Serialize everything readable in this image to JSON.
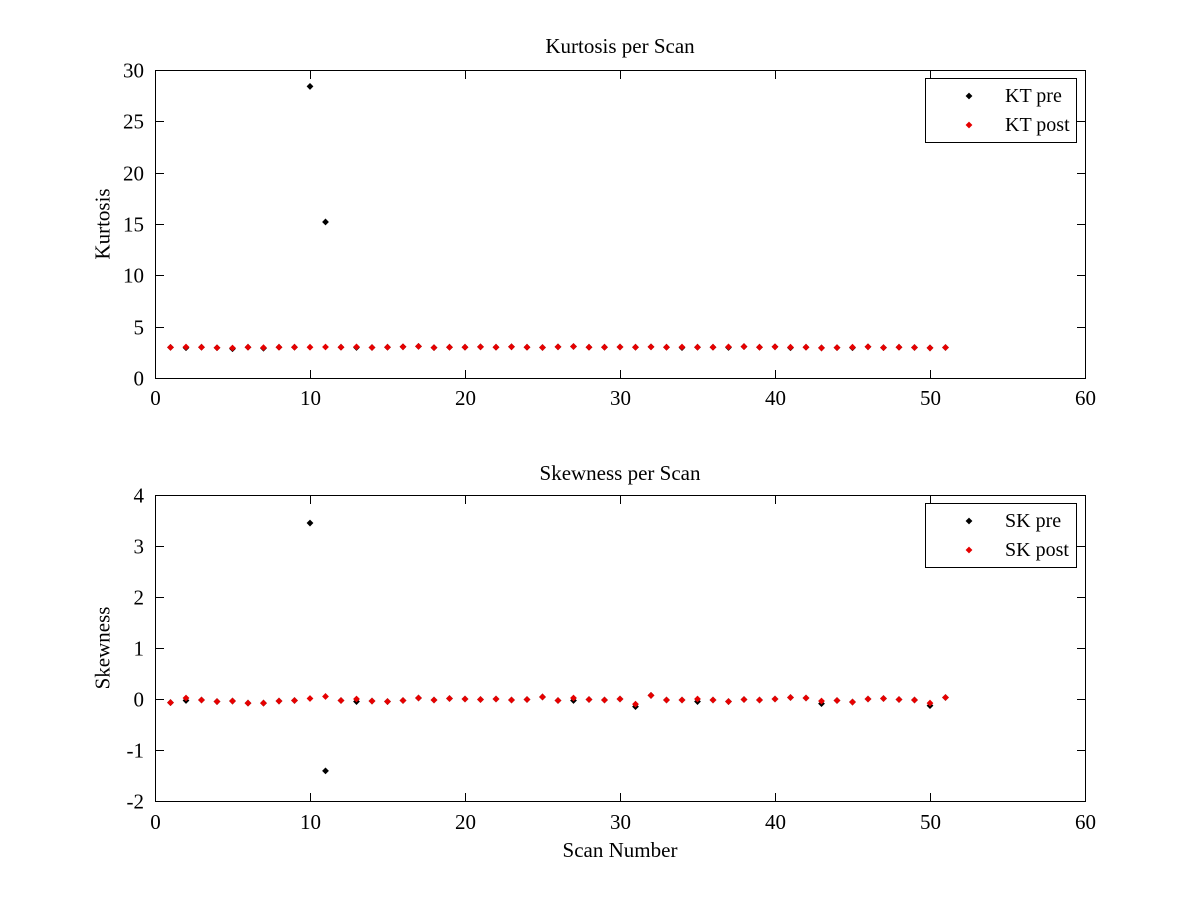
{
  "figure": {
    "background": "#ffffff",
    "axis_color": "#000000"
  },
  "colors": {
    "pre": "#000000",
    "post": "#e60000"
  },
  "chart_data": [
    {
      "type": "scatter",
      "title": "Kurtosis per Scan",
      "xlabel": "",
      "ylabel": "Kurtosis",
      "xlim": [
        0,
        60
      ],
      "ylim": [
        0,
        30
      ],
      "xticks": [
        0,
        10,
        20,
        30,
        40,
        50,
        60
      ],
      "yticks": [
        0,
        5,
        10,
        15,
        20,
        25,
        30
      ],
      "grid": false,
      "legend": {
        "position": "top-right",
        "entries": [
          {
            "label": "KT pre",
            "color": "#000000"
          },
          {
            "label": "KT post",
            "color": "#e60000"
          }
        ]
      },
      "x": [
        1,
        2,
        3,
        4,
        5,
        6,
        7,
        8,
        9,
        10,
        11,
        12,
        13,
        14,
        15,
        16,
        17,
        18,
        19,
        20,
        21,
        22,
        23,
        24,
        25,
        26,
        27,
        28,
        29,
        30,
        31,
        32,
        33,
        34,
        35,
        36,
        37,
        38,
        39,
        40,
        41,
        42,
        43,
        44,
        45,
        46,
        47,
        48,
        49,
        50,
        51
      ],
      "series": [
        {
          "name": "KT pre",
          "color": "#000000",
          "values": [
            2.98,
            2.95,
            3.0,
            2.95,
            2.85,
            3.0,
            2.9,
            3.0,
            3.0,
            28.4,
            15.2,
            3.0,
            2.97,
            2.97,
            3.0,
            3.04,
            3.08,
            2.96,
            3.0,
            3.0,
            3.03,
            3.0,
            3.04,
            3.0,
            2.97,
            3.03,
            3.07,
            3.0,
            3.0,
            3.02,
            3.0,
            3.03,
            3.0,
            2.96,
            3.0,
            3.0,
            2.97,
            3.06,
            3.0,
            3.04,
            2.95,
            3.0,
            2.93,
            2.96,
            2.95,
            3.04,
            2.96,
            3.0,
            2.97,
            2.93,
            2.97
          ]
        },
        {
          "name": "KT post",
          "color": "#e60000",
          "values": [
            2.98,
            3.02,
            3.0,
            2.95,
            2.92,
            3.0,
            2.96,
            3.0,
            3.0,
            3.0,
            3.02,
            3.0,
            3.03,
            2.97,
            3.0,
            3.04,
            3.08,
            2.96,
            3.0,
            3.0,
            3.03,
            3.0,
            3.04,
            3.0,
            2.97,
            3.03,
            3.07,
            3.0,
            3.0,
            3.02,
            3.0,
            3.03,
            3.0,
            3.02,
            3.0,
            3.0,
            3.03,
            3.06,
            3.0,
            3.04,
            3.0,
            3.0,
            2.93,
            2.96,
            3.0,
            3.04,
            2.96,
            3.0,
            2.97,
            2.93,
            2.97
          ]
        }
      ]
    },
    {
      "type": "scatter",
      "title": "Skewness per Scan",
      "xlabel": "Scan Number",
      "ylabel": "Skewness",
      "xlim": [
        0,
        60
      ],
      "ylim": [
        -2,
        4
      ],
      "xticks": [
        0,
        10,
        20,
        30,
        40,
        50,
        60
      ],
      "yticks": [
        -2,
        -1,
        0,
        1,
        2,
        3,
        4
      ],
      "grid": false,
      "legend": {
        "position": "top-right",
        "entries": [
          {
            "label": "SK pre",
            "color": "#000000"
          },
          {
            "label": "SK post",
            "color": "#e60000"
          }
        ]
      },
      "x": [
        1,
        2,
        3,
        4,
        5,
        6,
        7,
        8,
        9,
        10,
        11,
        12,
        13,
        14,
        15,
        16,
        17,
        18,
        19,
        20,
        21,
        22,
        23,
        24,
        25,
        26,
        27,
        28,
        29,
        30,
        31,
        32,
        33,
        34,
        35,
        36,
        37,
        38,
        39,
        40,
        41,
        42,
        43,
        44,
        45,
        46,
        47,
        48,
        49,
        50,
        51
      ],
      "series": [
        {
          "name": "SK pre",
          "color": "#000000",
          "values": [
            -0.07,
            -0.03,
            -0.02,
            -0.05,
            -0.04,
            -0.08,
            -0.08,
            -0.04,
            -0.03,
            3.45,
            -1.41,
            -0.03,
            -0.05,
            -0.04,
            -0.05,
            -0.03,
            0.02,
            -0.02,
            0.01,
            0.0,
            -0.01,
            0.0,
            -0.02,
            -0.01,
            0.04,
            -0.03,
            -0.03,
            -0.01,
            -0.02,
            0.0,
            -0.15,
            0.07,
            -0.02,
            -0.02,
            -0.05,
            -0.02,
            -0.05,
            -0.01,
            -0.02,
            0.0,
            0.03,
            0.02,
            -0.09,
            -0.03,
            -0.06,
            0.0,
            0.01,
            -0.01,
            -0.02,
            -0.13,
            0.03
          ]
        },
        {
          "name": "SK post",
          "color": "#e60000",
          "values": [
            -0.07,
            0.02,
            -0.02,
            -0.05,
            -0.04,
            -0.08,
            -0.08,
            -0.04,
            -0.03,
            0.01,
            0.05,
            -0.03,
            0.0,
            -0.04,
            -0.05,
            -0.03,
            0.02,
            -0.02,
            0.01,
            0.0,
            -0.01,
            0.0,
            -0.02,
            -0.01,
            0.04,
            -0.03,
            0.02,
            -0.01,
            -0.02,
            0.0,
            -0.1,
            0.07,
            -0.02,
            -0.02,
            0.0,
            -0.02,
            -0.05,
            -0.01,
            -0.02,
            0.0,
            0.03,
            0.02,
            -0.04,
            -0.03,
            -0.06,
            0.0,
            0.01,
            -0.01,
            -0.02,
            -0.08,
            0.03
          ]
        }
      ]
    }
  ]
}
